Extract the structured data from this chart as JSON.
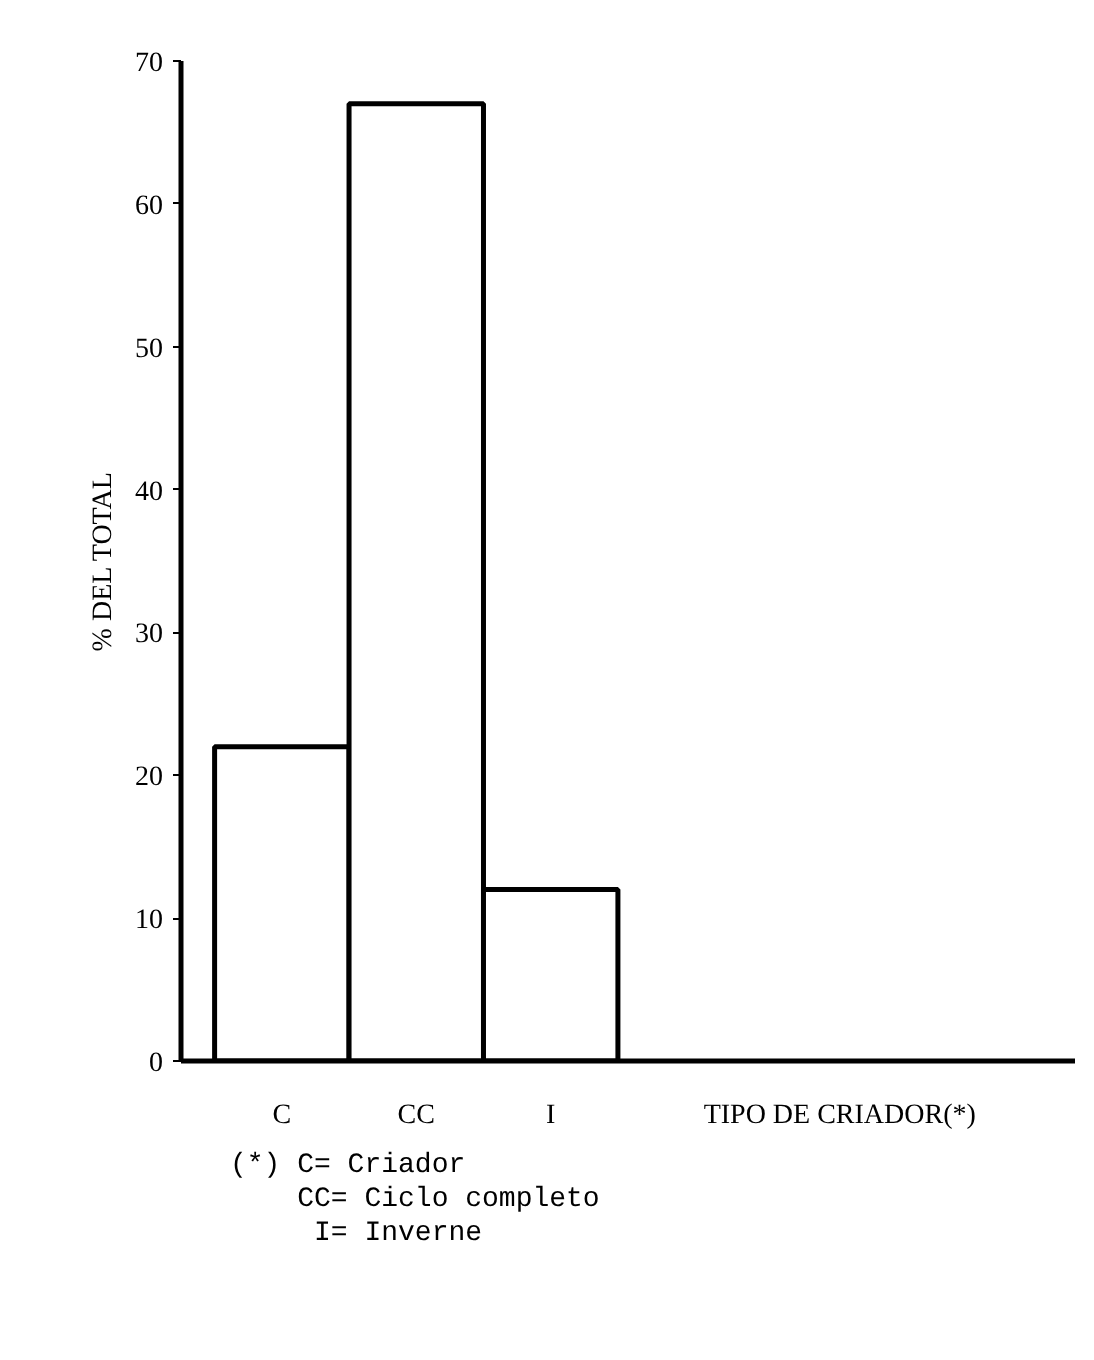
{
  "chart_data": {
    "type": "bar",
    "categories": [
      "C",
      "CC",
      "I"
    ],
    "values": [
      22,
      67,
      12
    ],
    "color": "#ffffff",
    "ylabel": "% DEL TOTAL",
    "xlabel": "TIPO DE CRIADOR(*)",
    "ylim": [
      0,
      70
    ],
    "yticks": [
      0,
      10,
      20,
      30,
      40,
      50,
      60,
      70
    ],
    "grid": false,
    "annotations": [
      "(*) C= Criador",
      "    CC= Ciclo completo",
      "     I= Inverne"
    ]
  }
}
